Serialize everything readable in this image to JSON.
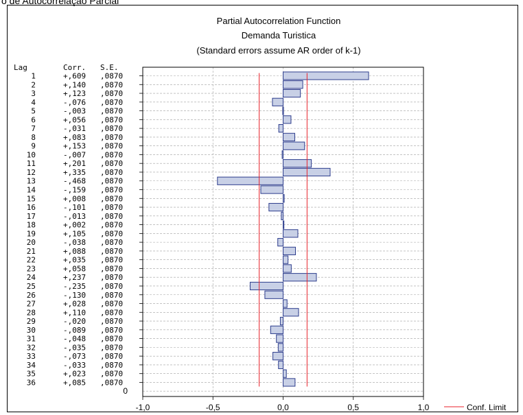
{
  "page_caption": "o de Autocorrelação Parcial",
  "chart_data": {
    "type": "bar",
    "orientation": "horizontal",
    "title": "Partial Autocorrelation Function",
    "subtitle": "Demanda Turistica",
    "note": "(Standard errors assume AR order of k-1)",
    "table_headers": {
      "lag": "Lag",
      "corr": "Corr.",
      "se": "S.E."
    },
    "lags": [
      1,
      2,
      3,
      4,
      5,
      6,
      7,
      8,
      9,
      10,
      11,
      12,
      13,
      14,
      15,
      16,
      17,
      18,
      19,
      20,
      21,
      22,
      23,
      24,
      25,
      26,
      27,
      28,
      29,
      30,
      31,
      32,
      33,
      34,
      35,
      36
    ],
    "lag_labels": [
      "1",
      "2",
      "3",
      "4",
      "5",
      "6",
      "7",
      "8",
      "9",
      "10",
      "11",
      "12",
      "13",
      "14",
      "15",
      "16",
      "17",
      "18",
      "19",
      "20",
      "21",
      "22",
      "23",
      "24",
      "25",
      "26",
      "27",
      "28",
      "29",
      "30",
      "31",
      "32",
      "33",
      "34",
      "35",
      "36"
    ],
    "values": [
      0.609,
      0.14,
      0.123,
      -0.076,
      -0.003,
      0.056,
      -0.031,
      0.083,
      0.153,
      -0.007,
      0.201,
      0.335,
      -0.468,
      -0.159,
      0.008,
      -0.101,
      -0.013,
      0.002,
      0.105,
      -0.038,
      0.088,
      0.035,
      0.058,
      0.237,
      -0.235,
      -0.13,
      0.028,
      0.11,
      -0.02,
      -0.089,
      -0.048,
      -0.035,
      -0.073,
      -0.033,
      0.023,
      0.085
    ],
    "corr_labels": [
      "+,609",
      "+,140",
      "+,123",
      "-,076",
      "-,003",
      "+,056",
      "-,031",
      "+,083",
      "+,153",
      "-,007",
      "+,201",
      "+,335",
      "-,468",
      "-,159",
      "+,008",
      "-,101",
      "-,013",
      "+,002",
      "+,105",
      "-,038",
      "+,088",
      "+,035",
      "+,058",
      "+,237",
      "-,235",
      "-,130",
      "+,028",
      "+,110",
      "-,020",
      "-,089",
      "-,048",
      "-,035",
      "-,073",
      "-,033",
      "+,023",
      "+,085"
    ],
    "se_labels": [
      ",0870",
      ",0870",
      ",0870",
      ",0870",
      ",0870",
      ",0870",
      ",0870",
      ",0870",
      ",0870",
      ",0870",
      ",0870",
      ",0870",
      ",0870",
      ",0870",
      ",0870",
      ",0870",
      ",0870",
      ",0870",
      ",0870",
      ",0870",
      ",0870",
      ",0870",
      ",0870",
      ",0870",
      ",0870",
      ",0870",
      ",0870",
      ",0870",
      ",0870",
      ",0870",
      ",0870",
      ",0870",
      ",0870",
      ",0870",
      ",0870",
      ",0870"
    ],
    "conf_limit": 0.1705,
    "xlim": [
      -1.0,
      1.0
    ],
    "xticks": [
      -1.0,
      -0.5,
      0.0,
      0.5,
      1.0
    ],
    "xtick_labels": [
      "-1,0",
      "-0,5",
      "0,0",
      "0,5",
      "1,0"
    ],
    "zero_row_label": "0",
    "legend": {
      "label": "Conf. Limit",
      "placement": "bottom-right"
    },
    "grid": true,
    "colors": {
      "bar_fill": "#c8d0e6",
      "bar_stroke": "#2c3c8c",
      "conf_line": "#e8222b",
      "grid": "#a0a0a0"
    }
  }
}
